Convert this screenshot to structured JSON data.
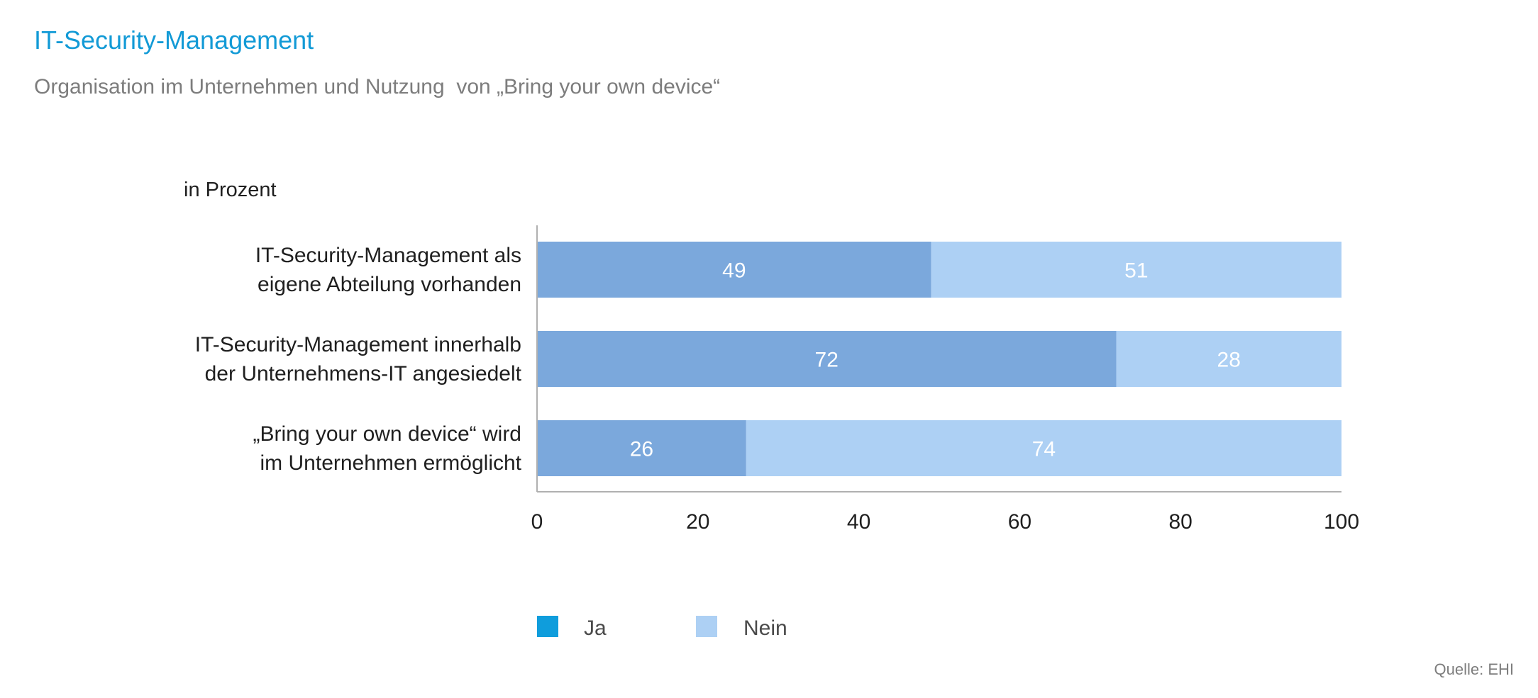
{
  "header": {
    "title": "IT-Security-Management",
    "subtitle": "Organisation im Unternehmen und Nutzung  von „Bring your own device“"
  },
  "unit_label": "in Prozent",
  "source": "Quelle: EHI",
  "colors": {
    "ja": "#7ba8dc",
    "ja_legend": "#0f9ddc",
    "nein": "#add0f4",
    "axis": "#b0b0b0",
    "title": "#129ad6"
  },
  "chart_data": {
    "type": "bar",
    "orientation": "horizontal",
    "stacked": true,
    "categories": [
      [
        "IT-Security-Management als",
        "eigene Abteilung vorhanden"
      ],
      [
        "IT-Security-Management innerhalb",
        "der Unternehmens-IT angesiedelt"
      ],
      [
        "„Bring your own device“ wird",
        "im Unternehmen ermöglicht"
      ]
    ],
    "series": [
      {
        "name": "Ja",
        "values": [
          49,
          72,
          26
        ]
      },
      {
        "name": "Nein",
        "values": [
          51,
          28,
          74
        ]
      }
    ],
    "xlim": [
      0,
      100
    ],
    "xticks": [
      0,
      20,
      40,
      60,
      80,
      100
    ],
    "legend": "bottom",
    "grid": false
  }
}
